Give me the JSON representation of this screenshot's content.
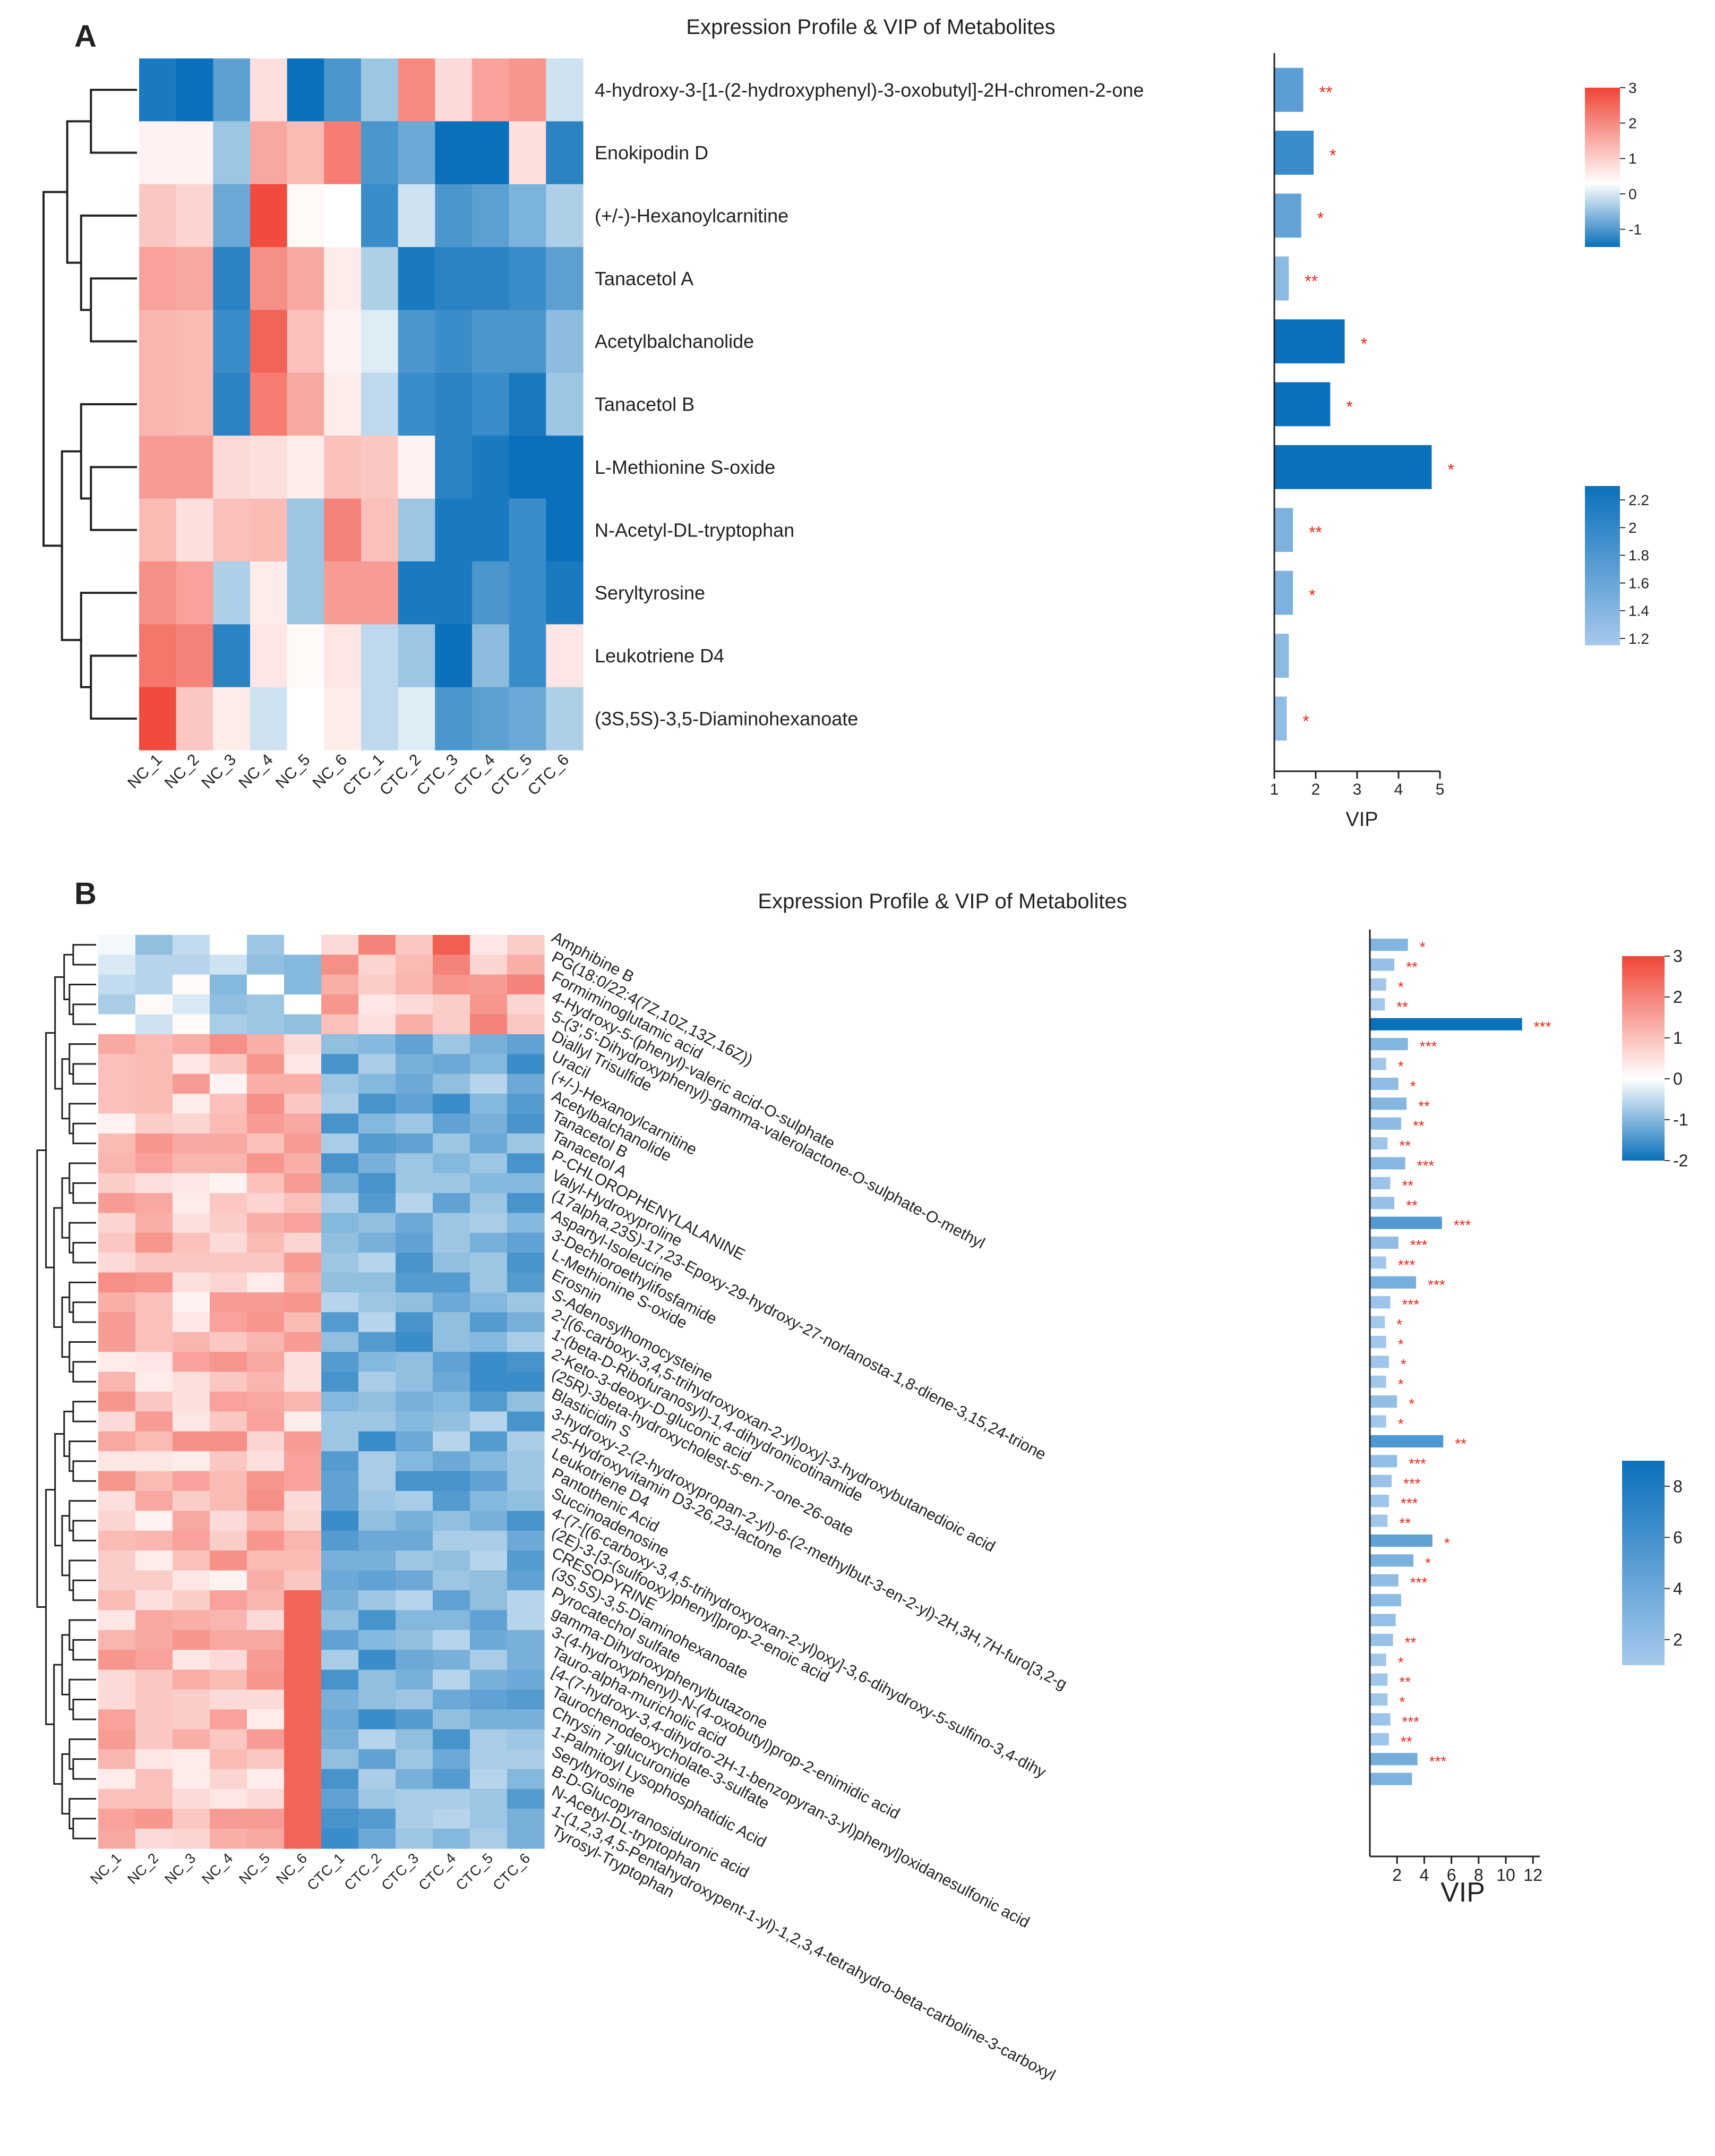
{
  "colors": {
    "accent": "#0a70bb",
    "sig": "#e8281e",
    "heat_low": "#0a70bb",
    "heat_mid": "#ffffff",
    "heat_high": "#f04536",
    "vip_low": "#a6c9ec",
    "vip_high": "#0a70bb"
  },
  "chart_data": [
    {
      "panel": "A",
      "type": "heatmap",
      "title": "Expression Profile & VIP of Metabolites",
      "samples": [
        "NC_1",
        "NC_2",
        "NC_3",
        "NC_4",
        "NC_5",
        "NC_6",
        "CTC_1",
        "CTC_2",
        "CTC_3",
        "CTC_4",
        "CTC_5",
        "CTC_6"
      ],
      "metabolites": [
        "4-hydroxy-3-[1-(2-hydroxyphenyl)-3-oxobutyl]-2H-chromen-2-one",
        "Enokipodin D",
        "(+/-)-Hexanoylcarnitine",
        "Tanacetol A",
        "Acetylbalchanolide",
        "Tanacetol B",
        "L-Methionine S-oxide",
        "N-Acetyl-DL-tryptophan",
        "Seryltyrosine",
        "Leukotriene D4",
        "(3S,5S)-3,5-Diaminohexanoate"
      ],
      "vip": [
        1.7,
        1.95,
        1.65,
        1.35,
        2.7,
        2.35,
        4.8,
        1.45,
        1.45,
        1.35,
        1.3
      ],
      "significance": [
        "**",
        "*",
        "*",
        "**",
        "*",
        "*",
        "*",
        "**",
        "*",
        "",
        "*"
      ],
      "vip_axis": {
        "label": "VIP",
        "ticks": [
          "1",
          "2",
          "3",
          "4",
          "5"
        ],
        "range": [
          1,
          5
        ]
      },
      "heat_scale": {
        "ticks": [
          "3",
          "2",
          "1",
          "0",
          "-1"
        ],
        "range": [
          -1.5,
          3
        ]
      },
      "vip_scale": {
        "ticks": [
          "2.2",
          "2",
          "1.8",
          "1.6",
          "1.4",
          "1.2"
        ],
        "range": [
          1.15,
          2.3
        ]
      },
      "values": [
        [
          -1.4,
          -1.5,
          -1.0,
          0.5,
          -1.5,
          -1.1,
          -0.6,
          1.9,
          0.6,
          1.5,
          1.7,
          -0.3
        ],
        [
          0.2,
          0.2,
          -0.6,
          1.4,
          1.1,
          2.1,
          -1.1,
          -0.9,
          -1.5,
          -1.5,
          0.5,
          -1.3
        ],
        [
          0.9,
          0.7,
          -0.9,
          2.9,
          0.1,
          0.0,
          -1.2,
          -0.3,
          -1.1,
          -1.0,
          -0.8,
          -0.5
        ],
        [
          1.5,
          1.4,
          -1.3,
          1.8,
          1.4,
          0.3,
          -0.5,
          -1.4,
          -1.3,
          -1.3,
          -1.2,
          -1.0
        ],
        [
          1.2,
          1.1,
          -1.2,
          2.5,
          1.0,
          0.2,
          -0.2,
          -1.1,
          -1.2,
          -1.1,
          -1.1,
          -0.7
        ],
        [
          1.2,
          1.1,
          -1.3,
          2.1,
          1.4,
          0.3,
          -0.4,
          -1.2,
          -1.3,
          -1.2,
          -1.4,
          -0.6
        ],
        [
          1.6,
          1.6,
          0.6,
          0.5,
          0.3,
          1.0,
          0.9,
          0.2,
          -1.3,
          -1.4,
          -1.9,
          -1.6
        ],
        [
          1.1,
          0.5,
          1.0,
          1.1,
          -0.6,
          2.0,
          1.0,
          -0.6,
          -1.4,
          -1.4,
          -1.2,
          -1.5
        ],
        [
          1.8,
          1.5,
          -0.5,
          0.3,
          -0.6,
          1.6,
          1.6,
          -1.4,
          -1.4,
          -1.1,
          -1.2,
          -1.4
        ],
        [
          2.2,
          2.0,
          -1.3,
          0.4,
          0.1,
          0.4,
          -0.4,
          -0.6,
          -1.5,
          -0.7,
          -1.2,
          0.4
        ],
        [
          2.9,
          0.9,
          0.3,
          -0.3,
          0.0,
          0.3,
          -0.4,
          -0.2,
          -1.1,
          -1.0,
          -0.9,
          -0.5
        ]
      ]
    },
    {
      "panel": "B",
      "type": "heatmap",
      "title": "Expression Profile & VIP of Metabolites",
      "samples": [
        "NC_1",
        "NC_2",
        "NC_3",
        "NC_4",
        "NC_5",
        "NC_6",
        "CTC_1",
        "CTC_2",
        "CTC_3",
        "CTC_4",
        "CTC_5",
        "CTC_6"
      ],
      "metabolites": [
        "Amphibine B",
        "PG(18:0/22:4(7Z,10Z,13Z,16Z))",
        "Formiminoglutamic acid",
        "4-Hydroxy-5-(phenyl)-valeric acid-O-sulphate",
        "5-(3',5'-Dihydroxyphenyl)-gamma-valerolactone-O-sulphate-O-methyl",
        "Diallyl Trisulfide",
        "Uracil",
        "(+/-)-Hexanoylcarnitine",
        "Acetylbalchanolide",
        "Tanacetol B",
        "Tanacetol A",
        "P-CHLOROPHENYLALANINE",
        "Valyl-Hydroxyproline",
        "(17alpha,23S)-17,23-Epoxy-29-hydroxy-27-norlanosta-1,8-diene-3,15,24-trione",
        "Aspartyl-Isoleucine",
        "3-Dechloroethylifosfamide",
        "L-Methionine S-oxide",
        "Erosnin",
        "S-Adenosylhomocysteine",
        "2-[(6-carboxy-3,4,5-trihydroxyoxan-2-yl)oxy]-3-hydroxybutanedioic acid",
        "1-(beta-D-Ribofuranosyl)-1,4-dihydronicotinamide",
        "2-Keto-3-deoxy-D-gluconic acid",
        "(25R)-3beta-hydroxycholest-5-en-7-one-26-oate",
        "Blasticidin S",
        "3-hydroxy-2-(2-hydroxypropan-2-yl)-6-(2-methylbut-3-en-2-yl)-2H,3H,7H-furo[3,2-g",
        "25-Hydroxyvitamin D3-26,23-lactone",
        "Leukotriene D4",
        "Pantothenic Acid",
        "Succinoadenosine",
        "4-(7-[(6-carboxy-3,4,5-trihydroxyoxan-2-yl)oxy]-3,6-dihydroxy-5-sulfino-3,4-dihy",
        "(2E)-3-[3-(sulfooxy)phenyl]prop-2-enoic acid",
        "CRESOPYRINE",
        "(3S,5S)-3,5-Diaminohexanoate",
        "Pyrocatechol sulfate",
        "gamma-Dihydroxyphenylbutazone",
        "3-(4-hydroxyphenyl)-N-(4-oxobutyl)prop-2-enimidic acid",
        "Tauro-alpha-muricholic acid",
        "[4-(7-hydroxy-3,4-dihydro-2H-1-benzopyran-3-yl)phenyl]oxidanesulfonic acid",
        "Taurochenodeoxycholate-3-sulfate",
        "Chrysin 7-glucuronide",
        "1-Palmitoyl Lysophosphatidic Acid",
        "Seryltyrosine",
        "B-D-Glucopyranosiduronic acid",
        "N-Acetyl-DL-tryptophan",
        "1-(1,2,3,4,5-Pentahydroxypent-1-yl)-1,2,3,4-tetrahydro-beta-carboline-3-carboxyl",
        "Tyrosyl-Tryptophan"
      ],
      "vip": [
        2.8,
        1.8,
        1.2,
        1.1,
        11.2,
        2.8,
        1.2,
        2.1,
        2.7,
        2.3,
        1.3,
        2.6,
        1.5,
        1.8,
        5.3,
        2.1,
        1.2,
        3.4,
        1.5,
        1.1,
        1.2,
        1.4,
        1.2,
        2.0,
        1.2,
        5.4,
        2.0,
        1.6,
        1.4,
        1.3,
        4.6,
        3.2,
        2.1,
        2.3,
        1.9,
        1.7,
        1.2,
        1.3,
        1.3,
        1.5,
        1.4,
        3.5,
        3.1,
        0,
        0,
        0
      ],
      "significance": [
        "*",
        "**",
        "*",
        "**",
        "***",
        "***",
        "*",
        "*",
        "**",
        "**",
        "**",
        "***",
        "**",
        "**",
        "***",
        "***",
        "***",
        "***",
        "***",
        "*",
        "*",
        "*",
        "*",
        "*",
        "*",
        "**",
        "***",
        "***",
        "***",
        "**",
        "*",
        "*",
        "***",
        "",
        "",
        "**",
        "*",
        "**",
        "*",
        "***",
        "**",
        "***",
        "",
        "",
        "",
        ""
      ],
      "vip_axis": {
        "label": "VIP",
        "ticks": [
          "2",
          "4",
          "6",
          "8",
          "10",
          "12"
        ],
        "range": [
          0,
          12.5
        ]
      },
      "heat_scale": {
        "ticks": [
          "3",
          "2",
          "1",
          "0",
          "-1",
          "-2"
        ],
        "range": [
          -2,
          3
        ]
      },
      "vip_scale": {
        "ticks": [
          "8",
          "6",
          "4",
          "2"
        ],
        "range": [
          1,
          9
        ]
      }
    }
  ]
}
